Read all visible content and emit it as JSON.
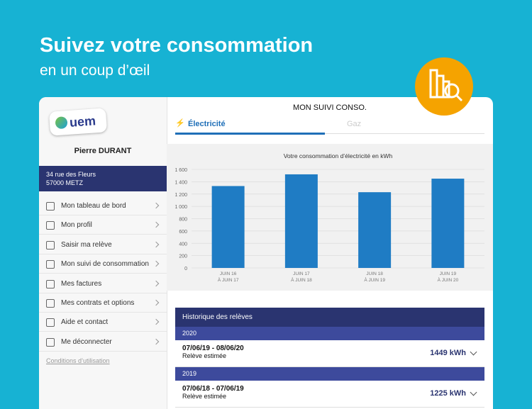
{
  "header": {
    "title": "Suivez votre consommation",
    "subtitle": "en un coup d’œil"
  },
  "sidebar": {
    "logo": "uem",
    "user": "Pierre DURANT",
    "address": [
      "34 rue des Fleurs",
      "57000 METZ"
    ],
    "menu": [
      "Mon tableau de bord",
      "Mon profil",
      "Saisir ma relève",
      "Mon suivi de consommation",
      "Mes factures",
      "Mes contrats et options",
      "Aide et contact",
      "Me déconnecter"
    ],
    "footer_link": "Conditions d’utilisation"
  },
  "main": {
    "title": "MON SUIVI CONSO.",
    "tabs": [
      "Électricité",
      "Gaz"
    ]
  },
  "chart_data": {
    "type": "bar",
    "title": "Votre consommation d’électricité en kWh",
    "categories": [
      [
        "JUIN 16",
        "À JUIN 17"
      ],
      [
        "JUIN 17",
        "À JUIN 18"
      ],
      [
        "JUIN 18",
        "À JUIN 19"
      ],
      [
        "JUIN 19",
        "À JUIN 20"
      ]
    ],
    "values": [
      1330,
      1520,
      1230,
      1450
    ],
    "color": "#1f7cc4",
    "ylim": [
      0,
      1600
    ],
    "yticks": [
      0,
      200,
      400,
      600,
      800,
      {
        "value": 1000,
        "label": "1 000"
      },
      {
        "value": 1200,
        "label": "1 200"
      },
      {
        "value": 1400,
        "label": "1 400"
      },
      {
        "value": 1600,
        "label": "1 600"
      }
    ],
    "grid": true
  },
  "history": {
    "title": "Historique des relèves",
    "groups": [
      {
        "year": "2020",
        "entries": [
          {
            "dates": "07/06/19 - 08/06/20",
            "type": "Relève estimée",
            "value": "1449 kWh"
          }
        ]
      },
      {
        "year": "2019",
        "entries": [
          {
            "dates": "07/06/18 - 07/06/19",
            "type": "Relève estimée",
            "value": "1225 kWh"
          }
        ]
      }
    ]
  }
}
